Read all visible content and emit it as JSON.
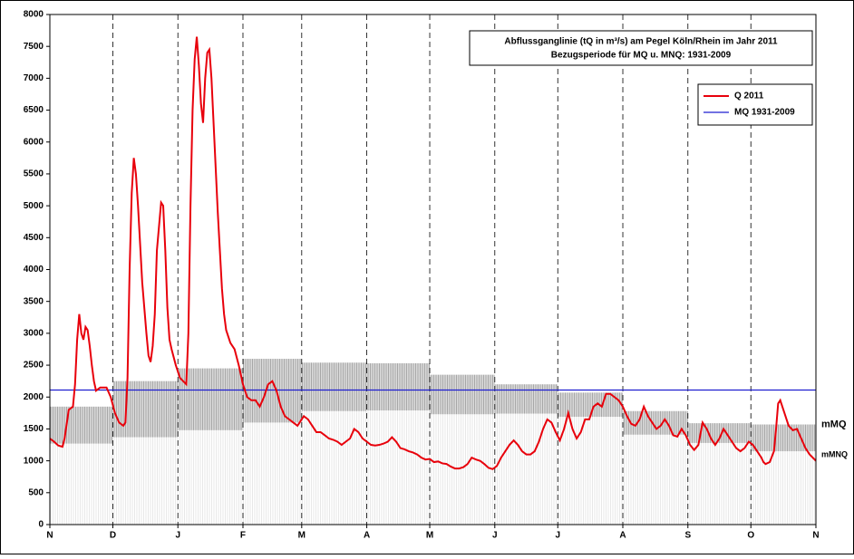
{
  "chart_data": {
    "type": "line",
    "title": "Abflussganglinie (tQ in m³/s) am Pegel Köln/Rhein im Jahr 2011",
    "subtitle": "Bezugsperiode für MQ u. MNQ: 1931-2009",
    "xlim": [
      0,
      365
    ],
    "xticks": [
      {
        "value": 0,
        "label": "N"
      },
      {
        "value": 30,
        "label": "D"
      },
      {
        "value": 61,
        "label": "J"
      },
      {
        "value": 92,
        "label": "F"
      },
      {
        "value": 120,
        "label": "M"
      },
      {
        "value": 151,
        "label": "A"
      },
      {
        "value": 181,
        "label": "M"
      },
      {
        "value": 212,
        "label": "J"
      },
      {
        "value": 242,
        "label": "J"
      },
      {
        "value": 273,
        "label": "A"
      },
      {
        "value": 304,
        "label": "S"
      },
      {
        "value": 334,
        "label": "O"
      },
      {
        "value": 365,
        "label": "N"
      }
    ],
    "ylim": [
      0,
      8000
    ],
    "yticks": [
      0,
      500,
      1000,
      1500,
      2000,
      2500,
      3000,
      3500,
      4000,
      4500,
      5000,
      5500,
      6000,
      6500,
      7000,
      7500,
      8000
    ],
    "grid": true,
    "legend": "top-right",
    "bands": [
      {
        "name": "mMQ",
        "values": [
          1850,
          2250,
          2450,
          2600,
          2540,
          2530,
          2350,
          2200,
          2070,
          1780,
          1590,
          1570
        ]
      },
      {
        "name": "mMNQ",
        "values": [
          1270,
          1370,
          1480,
          1600,
          1780,
          1790,
          1730,
          1740,
          1690,
          1410,
          1280,
          1150
        ]
      }
    ],
    "series": [
      {
        "name": "Q 2011",
        "color": "#e8000b",
        "x": [
          0,
          2,
          4,
          6,
          7,
          9,
          11,
          12,
          13,
          14,
          15,
          16,
          17,
          18,
          19,
          20,
          21,
          22,
          24,
          27,
          29,
          31,
          33,
          35,
          36,
          37,
          38,
          39,
          40,
          41,
          42,
          43,
          44,
          46,
          47,
          48,
          49,
          50,
          51,
          53,
          54,
          55,
          56,
          57,
          58,
          60,
          62,
          65,
          66,
          67,
          68,
          69,
          70,
          71,
          72,
          73,
          74,
          75,
          76,
          77,
          78,
          79,
          80,
          81,
          82,
          83,
          84,
          86,
          88,
          90,
          92,
          94,
          96,
          98,
          100,
          102,
          104,
          106,
          108,
          110,
          112,
          114,
          116,
          118,
          121,
          123,
          125,
          127,
          129,
          131,
          133,
          135,
          137,
          139,
          141,
          143,
          145,
          147,
          149,
          151,
          153,
          155,
          157,
          159,
          161,
          163,
          165,
          167,
          169,
          171,
          173,
          175,
          177,
          179,
          181,
          183,
          185,
          187,
          189,
          191,
          193,
          195,
          197,
          199,
          201,
          203,
          205,
          207,
          209,
          211,
          213,
          215,
          217,
          219,
          221,
          223,
          225,
          227,
          229,
          231,
          233,
          235,
          237,
          239,
          241,
          243,
          245,
          247,
          249,
          251,
          253,
          255,
          257,
          259,
          261,
          263,
          265,
          267,
          269,
          271,
          273,
          275,
          277,
          279,
          281,
          283,
          285,
          287,
          289,
          291,
          293,
          295,
          297,
          299,
          301,
          303,
          305,
          307,
          309,
          311,
          313,
          315,
          317,
          319,
          321,
          323,
          325,
          327,
          329,
          331,
          333,
          335,
          337,
          339,
          340,
          341,
          343,
          345,
          346,
          347,
          348,
          350,
          352,
          354,
          356,
          358,
          360,
          362,
          365
        ],
        "values": [
          1350,
          1300,
          1240,
          1220,
          1350,
          1800,
          1850,
          2200,
          2900,
          3300,
          3000,
          2900,
          3100,
          3050,
          2800,
          2500,
          2250,
          2100,
          2150,
          2150,
          2000,
          1750,
          1600,
          1550,
          1600,
          2300,
          4000,
          5200,
          5750,
          5500,
          5000,
          4400,
          3800,
          3000,
          2650,
          2550,
          2800,
          3300,
          4300,
          5050,
          5000,
          4300,
          3400,
          2900,
          2750,
          2500,
          2300,
          2200,
          3000,
          5000,
          6500,
          7300,
          7650,
          7200,
          6600,
          6300,
          7000,
          7400,
          7450,
          7000,
          6300,
          5600,
          4900,
          4300,
          3700,
          3300,
          3050,
          2850,
          2750,
          2500,
          2200,
          2000,
          1950,
          1950,
          1850,
          2000,
          2200,
          2250,
          2100,
          1850,
          1700,
          1650,
          1600,
          1550,
          1700,
          1650,
          1550,
          1450,
          1450,
          1400,
          1350,
          1330,
          1300,
          1250,
          1300,
          1350,
          1500,
          1450,
          1350,
          1300,
          1250,
          1240,
          1250,
          1270,
          1300,
          1370,
          1300,
          1200,
          1180,
          1150,
          1130,
          1100,
          1050,
          1020,
          1030,
          980,
          990,
          960,
          950,
          910,
          880,
          880,
          900,
          950,
          1050,
          1020,
          1000,
          950,
          890,
          870,
          920,
          1050,
          1150,
          1250,
          1320,
          1250,
          1150,
          1100,
          1100,
          1150,
          1300,
          1500,
          1650,
          1600,
          1450,
          1320,
          1500,
          1750,
          1500,
          1350,
          1450,
          1650,
          1650,
          1850,
          1900,
          1850,
          2050,
          2050,
          2000,
          1950,
          1850,
          1700,
          1580,
          1550,
          1650,
          1850,
          1700,
          1600,
          1500,
          1550,
          1650,
          1550,
          1400,
          1380,
          1500,
          1400,
          1250,
          1170,
          1250,
          1600,
          1500,
          1350,
          1250,
          1350,
          1500,
          1400,
          1300,
          1200,
          1150,
          1200,
          1300,
          1250,
          1150,
          1050,
          980,
          950,
          980,
          1150,
          1500,
          1900,
          1950,
          1750,
          1550,
          1480,
          1500,
          1350,
          1200,
          1100,
          1000
        ]
      },
      {
        "name": "MQ 1931-2009",
        "color": "#1f1fd0",
        "x": [
          0,
          365
        ],
        "values": [
          2110,
          2110
        ]
      }
    ]
  }
}
